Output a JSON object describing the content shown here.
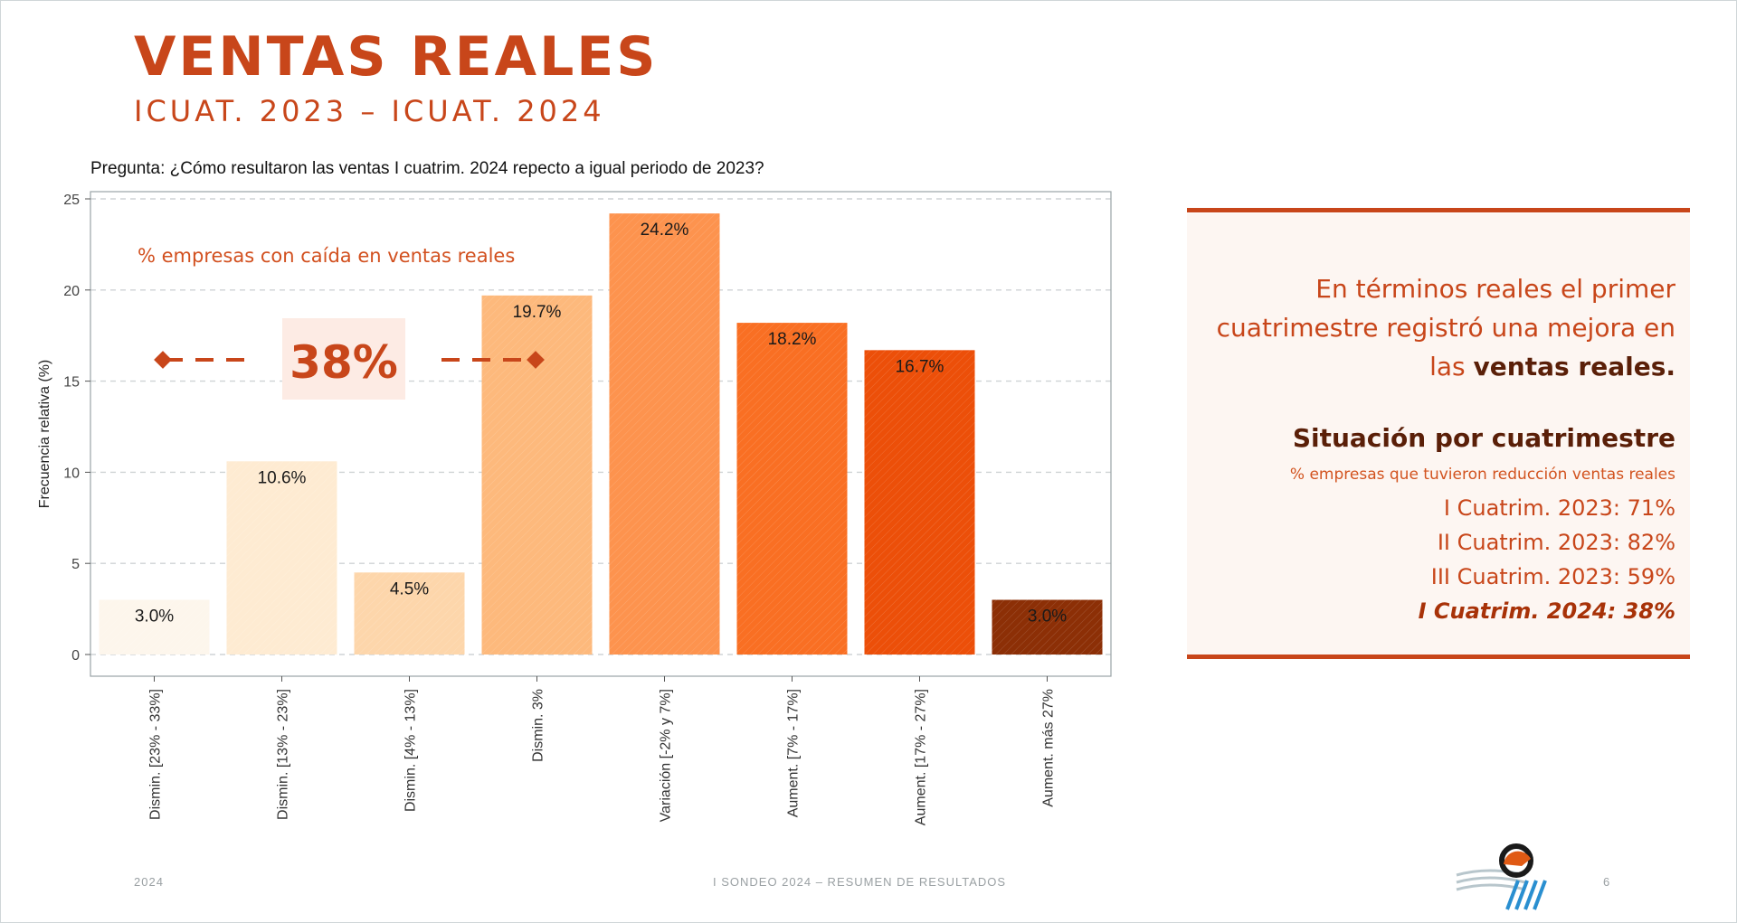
{
  "slide": {
    "title": "VENTAS REALES",
    "subtitle": "ICUAT. 2023 – ICUAT. 2024",
    "question": "Pregunta: ¿Cómo resultaron las ventas I cuatrim. 2024 repecto a igual periodo de 2023?",
    "footer_left": "2024",
    "footer_center": "I SONDEO 2024 – RESUMEN DE RESULTADOS",
    "page_number": "6"
  },
  "chart_data": {
    "type": "bar",
    "ylabel": "Frecuencia relativa (%)",
    "ylim": [
      0,
      25
    ],
    "yticks": [
      0,
      5,
      10,
      15,
      20,
      25
    ],
    "grid": true,
    "categories": [
      "Dismin. [23% - 33%]",
      "Dismin. [13% - 23%]",
      "Dismin. [4% - 13%]",
      "Dismin. 3%",
      "Variación [-2% y 7%]",
      "Aument. [7% - 17%]",
      "Aument. [17% - 27%]",
      "Aument. más 27%"
    ],
    "values": [
      3.0,
      10.6,
      4.5,
      19.7,
      24.2,
      18.2,
      16.7,
      3.0
    ],
    "data_labels": [
      "3.0%",
      "10.6%",
      "4.5%",
      "19.7%",
      "24.2%",
      "18.2%",
      "16.7%",
      "3.0%"
    ],
    "colors": [
      "#fdf6ec",
      "#feebd2",
      "#fdd6ab",
      "#fdb97c",
      "#fd934e",
      "#f96f23",
      "#ec4f09",
      "#8c2f06"
    ],
    "annotation": {
      "text": "% empresas con caída en ventas reales",
      "value": "38%",
      "color": "#d2501f"
    }
  },
  "panel": {
    "main_text_a": "En términos reales el primer cuatrimestre registró una mejora en las",
    "main_text_b": "ventas reales.",
    "situacion_title": "Situación por cuatrimestre",
    "situacion_note": "% empresas que tuvieron reducción ventas reales",
    "lines": [
      "I Cuatrim. 2023: 71%",
      "II Cuatrim. 2023: 82%",
      "III Cuatrim. 2023: 59%"
    ],
    "highlight": "I Cuatrim. 2024: 38%",
    "accent": "#c8461a"
  }
}
